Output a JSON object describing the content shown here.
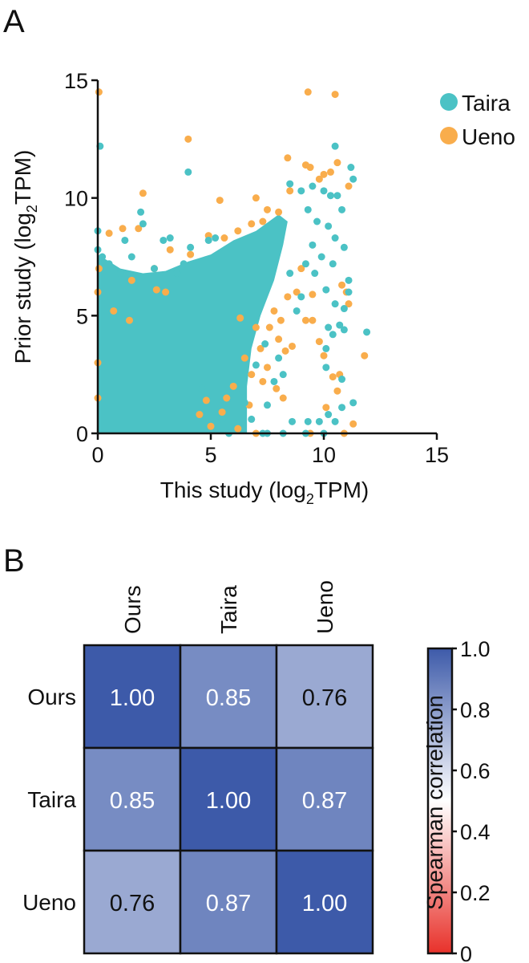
{
  "chart_data": [
    {
      "panel_label": "A",
      "type": "scatter",
      "xlabel": "This study (log2TPM)",
      "xlabel_parts": {
        "pre": "This study (log",
        "sub": "2",
        "post": "TPM)"
      },
      "ylabel_parts": {
        "pre": "Prior study (log",
        "sub": "2",
        "post": "TPM)"
      },
      "xlim": [
        0,
        15
      ],
      "ylim": [
        0,
        15
      ],
      "xticks": [
        "0",
        "5",
        "10",
        "15"
      ],
      "yticks": [
        "0",
        "5",
        "10",
        "15"
      ],
      "legend_placement": "top-right",
      "series": [
        {
          "name": "Ueno",
          "color": "#f9ad4c",
          "points": [
            [
              0.05,
              14.5
            ],
            [
              9.3,
              14.5
            ],
            [
              10.5,
              14.4
            ],
            [
              4,
              12.5
            ],
            [
              8.4,
              11.7
            ],
            [
              9.2,
              11.4
            ],
            [
              9.4,
              11.3
            ],
            [
              10.6,
              11.5
            ],
            [
              11.1,
              10.5
            ],
            [
              2,
              10.2
            ],
            [
              5.4,
              9.9
            ],
            [
              7,
              10
            ],
            [
              10,
              11
            ],
            [
              10.3,
              11.1
            ],
            [
              7.5,
              9.5
            ],
            [
              8,
              9.4
            ],
            [
              8.5,
              10.3
            ],
            [
              9.8,
              10.8
            ],
            [
              0.5,
              8.5
            ],
            [
              1.1,
              8.7
            ],
            [
              1.8,
              8.7
            ],
            [
              3.2,
              7.8
            ],
            [
              4.1,
              7.6
            ],
            [
              4.9,
              8.4
            ],
            [
              5.6,
              8.3
            ],
            [
              6.2,
              8.6
            ],
            [
              6.8,
              8.9
            ],
            [
              7.3,
              9
            ],
            [
              9,
              7
            ],
            [
              9.5,
              5.9
            ],
            [
              9.2,
              4.8
            ],
            [
              9.5,
              4.8
            ],
            [
              9.8,
              3.9
            ],
            [
              10,
              3.3
            ],
            [
              10.4,
              2.4
            ],
            [
              10.7,
              2.5
            ],
            [
              10.6,
              1.8
            ],
            [
              10.1,
              1.1
            ],
            [
              11.3,
              0.4
            ],
            [
              11.8,
              3.3
            ],
            [
              11,
              6
            ],
            [
              11.1,
              5.5
            ],
            [
              10.8,
              6.3
            ],
            [
              6.3,
              4.9
            ],
            [
              7,
              4.5
            ],
            [
              7.6,
              4.5
            ],
            [
              8,
              4
            ],
            [
              8.3,
              3.5
            ],
            [
              8.6,
              3.7
            ],
            [
              7.2,
              3.6
            ],
            [
              7.5,
              2.8
            ],
            [
              6.5,
              3.2
            ],
            [
              6.8,
              2.5
            ],
            [
              6,
              2
            ],
            [
              5.7,
              1.5
            ],
            [
              5.5,
              0.9
            ],
            [
              4.8,
              1.4
            ],
            [
              4.5,
              0.8
            ],
            [
              5,
              0.3
            ],
            [
              6.2,
              0.2
            ],
            [
              7,
              0
            ],
            [
              10.9,
              0
            ],
            [
              9.4,
              0
            ],
            [
              8.2,
              1.5
            ],
            [
              7.9,
              1.9
            ],
            [
              8.8,
              6
            ],
            [
              8.4,
              5.8
            ],
            [
              0.05,
              7
            ],
            [
              0,
              6
            ],
            [
              0,
              3
            ],
            [
              0,
              1.5
            ],
            [
              1.5,
              6.5
            ],
            [
              2.5,
              7
            ],
            [
              3,
              6
            ],
            [
              0.7,
              5.2
            ],
            [
              1.4,
              4.8
            ],
            [
              2.6,
              6.1
            ],
            [
              7.8,
              5.2
            ],
            [
              8.1,
              4.8
            ],
            [
              7.3,
              2.2
            ],
            [
              6.7,
              1.2
            ]
          ]
        },
        {
          "name": "Taira",
          "color": "#4bc2c5",
          "dense_region": [
            [
              0,
              0
            ],
            [
              0,
              7.6
            ],
            [
              1,
              7
            ],
            [
              2,
              6.8
            ],
            [
              3,
              6.9
            ],
            [
              4,
              7.3
            ],
            [
              5,
              7.6
            ],
            [
              6,
              8.2
            ],
            [
              7,
              8.6
            ],
            [
              8,
              9.3
            ],
            [
              8.4,
              9
            ],
            [
              8.2,
              8
            ],
            [
              7.8,
              6.5
            ],
            [
              7.2,
              5
            ],
            [
              6.8,
              3.6
            ],
            [
              6.6,
              2
            ],
            [
              6.6,
              0
            ]
          ],
          "points": [
            [
              0.1,
              12.2
            ],
            [
              4,
              11.1
            ],
            [
              10.5,
              12.2
            ],
            [
              11.2,
              11.3
            ],
            [
              11.3,
              10.8
            ],
            [
              8.5,
              10.6
            ],
            [
              9,
              10.3
            ],
            [
              9.5,
              10.5
            ],
            [
              10,
              10.3
            ],
            [
              10.3,
              10.1
            ],
            [
              10.6,
              10.1
            ],
            [
              10.8,
              9.5
            ],
            [
              9.3,
              9.5
            ],
            [
              9.7,
              9
            ],
            [
              10.2,
              8.8
            ],
            [
              10.5,
              8.3
            ],
            [
              10.9,
              7.9
            ],
            [
              9.5,
              8
            ],
            [
              9.9,
              7.5
            ],
            [
              10.4,
              7.2
            ],
            [
              9.2,
              7.2
            ],
            [
              9.6,
              6.8
            ],
            [
              10.1,
              6.1
            ],
            [
              10.5,
              5.5
            ],
            [
              10.9,
              5.3
            ],
            [
              11.1,
              6.5
            ],
            [
              11.1,
              6
            ],
            [
              10.2,
              4.5
            ],
            [
              10.4,
              4.2
            ],
            [
              10.7,
              4.6
            ],
            [
              10.9,
              4.4
            ],
            [
              10.1,
              3.6
            ],
            [
              10.1,
              2.8
            ],
            [
              10.8,
              2.3
            ],
            [
              10.8,
              1.1
            ],
            [
              10.2,
              0.8
            ],
            [
              11.3,
              1.3
            ],
            [
              11.9,
              4.3
            ],
            [
              8.6,
              0.5
            ],
            [
              9.3,
              0.5
            ],
            [
              9.8,
              0.5
            ],
            [
              10.5,
              0.5
            ],
            [
              0,
              8.6
            ],
            [
              0,
              7.8
            ],
            [
              0.2,
              7.5
            ],
            [
              1.2,
              8.2
            ],
            [
              1.9,
              9.4
            ],
            [
              2,
              8.9
            ],
            [
              2.9,
              8.2
            ],
            [
              3.2,
              8.3
            ],
            [
              4.1,
              7.9
            ],
            [
              4.9,
              8.2
            ],
            [
              5.2,
              8.3
            ],
            [
              0.5,
              7.2
            ],
            [
              1,
              6.8
            ],
            [
              1.5,
              7.5
            ],
            [
              2.5,
              7
            ],
            [
              3.5,
              6.8
            ],
            [
              3.8,
              7.2
            ],
            [
              6.5,
              1.3
            ],
            [
              6.8,
              0.6
            ],
            [
              5.8,
              0
            ],
            [
              7.3,
              0
            ],
            [
              7.5,
              0
            ],
            [
              8.2,
              0
            ],
            [
              9.2,
              0
            ],
            [
              10,
              0
            ],
            [
              7.5,
              1.2
            ],
            [
              7,
              2.9
            ],
            [
              7.8,
              2.2
            ],
            [
              8.2,
              2.5
            ],
            [
              8,
              3.2
            ],
            [
              7.4,
              3.8
            ],
            [
              6.4,
              1.8
            ],
            [
              5.5,
              0.6
            ],
            [
              4.6,
              1.9
            ],
            [
              9,
              5.8
            ],
            [
              8.8,
              5.2
            ],
            [
              8.5,
              6.8
            ]
          ]
        }
      ]
    },
    {
      "panel_label": "B",
      "type": "heatmap",
      "columns": [
        "Ours",
        "Taira",
        "Ueno"
      ],
      "rows": [
        "Ours",
        "Taira",
        "Ueno"
      ],
      "values": [
        [
          1.0,
          0.85,
          0.76
        ],
        [
          0.85,
          1.0,
          0.87
        ],
        [
          0.76,
          0.87,
          1.0
        ]
      ],
      "value_labels": [
        [
          "1.00",
          "0.85",
          "0.76"
        ],
        [
          "0.85",
          "1.00",
          "0.87"
        ],
        [
          "0.76",
          "0.87",
          "1.00"
        ]
      ],
      "colorbar": {
        "label": "Spearman correlation",
        "range": [
          0,
          1
        ],
        "ticks": [
          "0",
          "0.2",
          "0.4",
          "0.6",
          "0.8",
          "1.0"
        ],
        "colors": {
          "low": "#e8312a",
          "mid": "#ffffff",
          "high": "#3d5aa9"
        }
      }
    }
  ]
}
